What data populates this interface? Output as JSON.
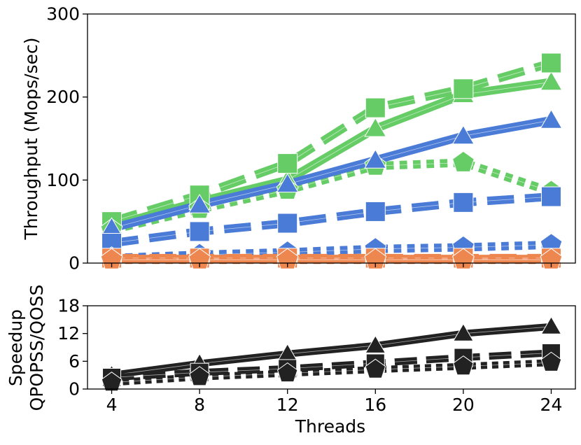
{
  "chart_data": [
    {
      "type": "line",
      "ylabel": "Throughput (Mops/sec)",
      "x": [
        4,
        8,
        12,
        16,
        20,
        24
      ],
      "ylim": [
        0,
        300
      ],
      "yticks": [
        "0",
        "100",
        "200",
        "300"
      ],
      "grid": false,
      "series": [
        {
          "color": "#66CC66",
          "style": "solid",
          "marker": "triangle",
          "values": [
            45,
            74,
            100,
            162,
            203,
            218
          ]
        },
        {
          "color": "#66CC66",
          "style": "dashed",
          "marker": "square",
          "values": [
            50,
            82,
            120,
            187,
            210,
            241
          ]
        },
        {
          "color": "#66CC66",
          "style": "dotted",
          "marker": "pentagon",
          "values": [
            40,
            65,
            88,
            117,
            121,
            86
          ]
        },
        {
          "color": "#4A7BD6",
          "style": "solid",
          "marker": "triangle",
          "values": [
            42,
            70,
            95,
            124,
            153,
            172
          ]
        },
        {
          "color": "#4A7BD6",
          "style": "dashed",
          "marker": "square",
          "values": [
            24,
            38,
            48,
            62,
            73,
            80
          ]
        },
        {
          "color": "#4A7BD6",
          "style": "dotted",
          "marker": "pentagon",
          "values": [
            6,
            10,
            13,
            17,
            19,
            22
          ]
        },
        {
          "color": "#EE8650",
          "style": "solid",
          "marker": "triangle",
          "values": [
            5,
            5,
            5,
            5,
            5,
            5
          ]
        },
        {
          "color": "#EE8650",
          "style": "dashed",
          "marker": "square",
          "values": [
            6,
            6,
            6,
            6,
            6,
            6
          ]
        },
        {
          "color": "#EE8650",
          "style": "dotted",
          "marker": "pentagon",
          "values": [
            4,
            4,
            4,
            4,
            4,
            4
          ]
        }
      ]
    },
    {
      "type": "line",
      "ylabel_lines": [
        "Speedup",
        "QPOPSS/QOSS"
      ],
      "xlabel": "Threads",
      "x": [
        4,
        8,
        12,
        16,
        20,
        24
      ],
      "xticks": [
        "4",
        "8",
        "12",
        "16",
        "20",
        "24"
      ],
      "ylim": [
        0,
        18
      ],
      "yticks": [
        "0",
        "6",
        "12",
        "18"
      ],
      "grid": false,
      "series": [
        {
          "color": "#222222",
          "style": "solid",
          "marker": "triangle",
          "values": [
            3,
            5.5,
            7.6,
            9.4,
            12,
            13.5
          ]
        },
        {
          "color": "#222222",
          "style": "dashed",
          "marker": "square",
          "values": [
            2.5,
            3.6,
            4.4,
            5.6,
            6.8,
            7.8
          ]
        },
        {
          "color": "#222222",
          "style": "dotted",
          "marker": "pentagon",
          "values": [
            1.4,
            2.6,
            3.4,
            4.2,
            4.9,
            5.7
          ]
        }
      ]
    }
  ]
}
